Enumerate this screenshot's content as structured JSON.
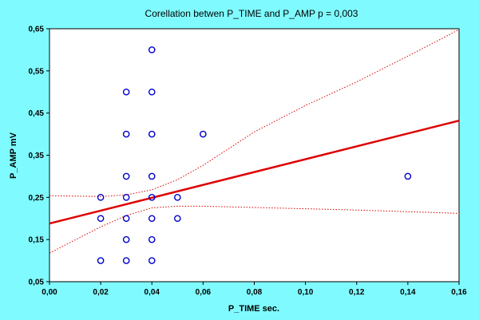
{
  "chart_data": {
    "type": "scatter",
    "title": "Corellation betwen P_TIME and P_AMP    p = 0,003",
    "xlabel": "P_TIME sec.",
    "ylabel": "P_AMP mV",
    "xlim": [
      0,
      0.16
    ],
    "ylim": [
      0.05,
      0.65
    ],
    "x_ticks": [
      "0,00",
      "0,02",
      "0,04",
      "0,06",
      "0,08",
      "0,10",
      "0,12",
      "0,14",
      "0,16"
    ],
    "y_ticks": [
      "0,05",
      "0,15",
      "0,25",
      "0,35",
      "0,45",
      "0,55",
      "0,65"
    ],
    "grid": false,
    "points": [
      {
        "x": 0.02,
        "y": 0.1
      },
      {
        "x": 0.02,
        "y": 0.2
      },
      {
        "x": 0.02,
        "y": 0.25
      },
      {
        "x": 0.03,
        "y": 0.1
      },
      {
        "x": 0.03,
        "y": 0.15
      },
      {
        "x": 0.03,
        "y": 0.2
      },
      {
        "x": 0.03,
        "y": 0.25
      },
      {
        "x": 0.03,
        "y": 0.3
      },
      {
        "x": 0.03,
        "y": 0.4
      },
      {
        "x": 0.03,
        "y": 0.5
      },
      {
        "x": 0.04,
        "y": 0.1
      },
      {
        "x": 0.04,
        "y": 0.15
      },
      {
        "x": 0.04,
        "y": 0.2
      },
      {
        "x": 0.04,
        "y": 0.25
      },
      {
        "x": 0.04,
        "y": 0.3
      },
      {
        "x": 0.04,
        "y": 0.4
      },
      {
        "x": 0.04,
        "y": 0.5
      },
      {
        "x": 0.04,
        "y": 0.6
      },
      {
        "x": 0.05,
        "y": 0.2
      },
      {
        "x": 0.05,
        "y": 0.25
      },
      {
        "x": 0.06,
        "y": 0.4
      },
      {
        "x": 0.14,
        "y": 0.3
      }
    ],
    "regression_line": {
      "x": [
        0,
        0.16
      ],
      "y": [
        0.188,
        0.432
      ]
    },
    "confidence_upper": {
      "x": [
        0,
        0.02,
        0.03,
        0.04,
        0.05,
        0.06,
        0.08,
        0.1,
        0.12,
        0.14,
        0.16
      ],
      "y": [
        0.254,
        0.252,
        0.256,
        0.268,
        0.292,
        0.326,
        0.405,
        0.468,
        0.524,
        0.585,
        0.648
      ]
    },
    "confidence_lower": {
      "x": [
        0,
        0.02,
        0.03,
        0.04,
        0.05,
        0.06,
        0.08,
        0.1,
        0.12,
        0.14,
        0.16
      ],
      "y": [
        0.118,
        0.18,
        0.207,
        0.225,
        0.229,
        0.229,
        0.226,
        0.223,
        0.22,
        0.216,
        0.212
      ]
    },
    "colors": {
      "background": "#7ffbff",
      "plot_area": "#ffffff",
      "points": "#0000cc",
      "regression": "#dd0000"
    }
  }
}
